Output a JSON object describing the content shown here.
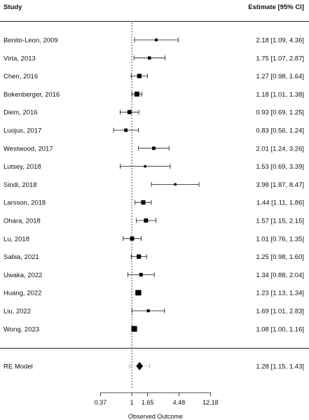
{
  "chart_data": {
    "type": "forest",
    "headers": {
      "left": "Study",
      "right": "Estimate [95% CI]"
    },
    "xlabel": "Observed Outcome",
    "xscale": "log",
    "xlim": [
      0.3,
      13.5
    ],
    "xticks": [
      0.37,
      1,
      1.65,
      4.48,
      12.18
    ],
    "xtick_labels": [
      "0.37",
      "1",
      "1.65",
      "4.48",
      "12.18"
    ],
    "reference_line": 1,
    "studies": [
      {
        "name": "Benito-Leon, 2009",
        "est": 2.18,
        "lo": 1.09,
        "hi": 4.36,
        "text": "2.18 [1.09, 4.36]",
        "weight": 0.45
      },
      {
        "name": "Virta, 2013",
        "est": 1.75,
        "lo": 1.07,
        "hi": 2.87,
        "text": "1.75 [1.07, 2.87]",
        "weight": 0.55
      },
      {
        "name": "Chen, 2016",
        "est": 1.27,
        "lo": 0.98,
        "hi": 1.64,
        "text": "1.27 [0.98, 1.64]",
        "weight": 0.85
      },
      {
        "name": "Bokenberger, 2016",
        "est": 1.18,
        "lo": 1.01,
        "hi": 1.38,
        "text": "1.18 [1.01, 1.38]",
        "weight": 1.0
      },
      {
        "name": "Diem, 2016",
        "est": 0.93,
        "lo": 0.69,
        "hi": 1.25,
        "text": "0.93 [0.69, 1.25]",
        "weight": 0.8
      },
      {
        "name": "Luojus, 2017",
        "est": 0.83,
        "lo": 0.56,
        "hi": 1.24,
        "text": "0.83 [0.56, 1.24]",
        "weight": 0.6
      },
      {
        "name": "Westwood, 2017",
        "est": 2.01,
        "lo": 1.24,
        "hi": 3.26,
        "text": "2.01 [1.24, 3.26]",
        "weight": 0.6
      },
      {
        "name": "Lutsey, 2018",
        "est": 1.53,
        "lo": 0.69,
        "hi": 3.39,
        "text": "1.53 [0.69, 3.39]",
        "weight": 0.35
      },
      {
        "name": "Sindi, 2018",
        "est": 3.98,
        "lo": 1.87,
        "hi": 8.47,
        "text": "3.98 [1.87, 8.47]",
        "weight": 0.35
      },
      {
        "name": "Larsson, 2018",
        "est": 1.44,
        "lo": 1.11,
        "hi": 1.86,
        "text": "1.44 [1.11, 1.86]",
        "weight": 0.85
      },
      {
        "name": "Ohara, 2018",
        "est": 1.57,
        "lo": 1.15,
        "hi": 2.15,
        "text": "1.57 [1.15, 2.15]",
        "weight": 0.8
      },
      {
        "name": "Lu, 2018",
        "est": 1.01,
        "lo": 0.76,
        "hi": 1.35,
        "text": "1.01 [0.76, 1.35]",
        "weight": 0.8
      },
      {
        "name": "Sabia, 2021",
        "est": 1.25,
        "lo": 0.98,
        "hi": 1.6,
        "text": "1.25 [0.98, 1.60]",
        "weight": 0.85
      },
      {
        "name": "Uwaka, 2022",
        "est": 1.34,
        "lo": 0.88,
        "hi": 2.04,
        "text": "1.34 [0.88, 2.04]",
        "weight": 0.65
      },
      {
        "name": "Huang, 2022",
        "est": 1.23,
        "lo": 1.13,
        "hi": 1.34,
        "text": "1.23 [1.13, 1.34]",
        "weight": 1.15
      },
      {
        "name": "Liu, 2022",
        "est": 1.69,
        "lo": 1.01,
        "hi": 2.83,
        "text": "1.69 [1.01, 2.83]",
        "weight": 0.5
      },
      {
        "name": "Wong, 2023",
        "est": 1.08,
        "lo": 1.0,
        "hi": 1.16,
        "text": "1.08 [1.00, 1.16]",
        "weight": 1.2
      }
    ],
    "summary": {
      "name": "RE Model",
      "est": 1.28,
      "lo": 1.15,
      "hi": 1.43,
      "pi_lo": 0.93,
      "pi_hi": 1.77,
      "text": "1.28 [1.15, 1.43]"
    }
  }
}
